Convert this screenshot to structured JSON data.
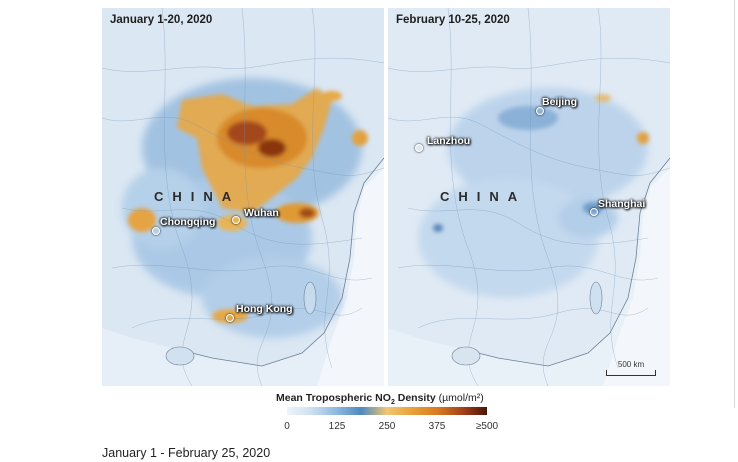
{
  "panels": {
    "left": {
      "title": "January 1-20, 2020",
      "country": "CHINA",
      "cities": [
        "Chongqing",
        "Wuhan",
        "Hong Kong"
      ]
    },
    "right": {
      "title": "February 10-25, 2020",
      "country": "CHINA",
      "cities": [
        "Beijing",
        "Lanzhou",
        "Shanghai"
      ],
      "scale_label": "500 km"
    }
  },
  "legend": {
    "title_prefix": "Mean Tropospheric NO",
    "title_sub": "2",
    "title_suffix": " Density",
    "unit": "(µmol/m²)",
    "ticks": [
      "0",
      "125",
      "250",
      "375",
      "≥500"
    ],
    "colors": [
      "#eef4fb",
      "#8db8de",
      "#4f89bf",
      "#f0c774",
      "#e9a33b",
      "#d97b22",
      "#a3411a",
      "#4b1406"
    ]
  },
  "caption": "January 1 - February 25, 2020"
}
